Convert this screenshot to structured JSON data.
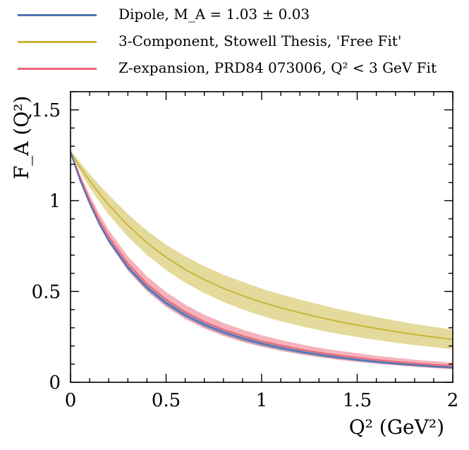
{
  "chart_data": {
    "type": "line",
    "xlabel": "Q² (GeV²)",
    "ylabel": "F_A (Q²)",
    "xlim": [
      0,
      2
    ],
    "ylim": [
      0,
      1.6
    ],
    "x_ticks": [
      0,
      0.5,
      1,
      1.5,
      2
    ],
    "x_tick_labels": [
      "0",
      "0.5",
      "1",
      "1.5",
      "2"
    ],
    "y_ticks": [
      0,
      0.5,
      1,
      1.5
    ],
    "y_tick_labels": [
      "0",
      "0.5",
      "1",
      "1.5"
    ],
    "grid": false,
    "legend_placement": "above plot",
    "x": [
      0,
      0.05,
      0.1,
      0.15,
      0.2,
      0.3,
      0.4,
      0.5,
      0.6,
      0.7,
      0.8,
      0.9,
      1.0,
      1.1,
      1.2,
      1.3,
      1.4,
      1.5,
      1.6,
      1.7,
      1.8,
      1.9,
      2.0
    ],
    "series": [
      {
        "name": "Dipole, M_A = 1.03 ± 0.03",
        "color": "#4a72b0",
        "values": [
          1.267,
          1.113,
          0.985,
          0.875,
          0.781,
          0.633,
          0.522,
          0.437,
          0.37,
          0.318,
          0.276,
          0.241,
          0.213,
          0.189,
          0.169,
          0.152,
          0.137,
          0.124,
          0.113,
          0.103,
          0.095,
          0.087,
          0.081
        ],
        "lower": [
          1.267,
          1.108,
          0.977,
          0.865,
          0.77,
          0.62,
          0.508,
          0.423,
          0.357,
          0.305,
          0.263,
          0.229,
          0.201,
          0.178,
          0.159,
          0.142,
          0.128,
          0.116,
          0.105,
          0.096,
          0.088,
          0.081,
          0.075
        ],
        "upper": [
          1.267,
          1.118,
          0.993,
          0.885,
          0.792,
          0.646,
          0.536,
          0.451,
          0.384,
          0.331,
          0.288,
          0.253,
          0.224,
          0.2,
          0.179,
          0.162,
          0.146,
          0.133,
          0.121,
          0.111,
          0.102,
          0.094,
          0.087
        ]
      },
      {
        "name": "3-Component, Stowell Thesis, 'Free Fit'",
        "color": "#c9b53a",
        "values": [
          1.267,
          1.185,
          1.11,
          1.041,
          0.977,
          0.864,
          0.768,
          0.688,
          0.621,
          0.565,
          0.517,
          0.477,
          0.441,
          0.41,
          0.383,
          0.358,
          0.335,
          0.315,
          0.296,
          0.279,
          0.263,
          0.249,
          0.236
        ],
        "lower": [
          1.255,
          1.16,
          1.073,
          0.995,
          0.923,
          0.802,
          0.701,
          0.618,
          0.548,
          0.491,
          0.442,
          0.401,
          0.366,
          0.336,
          0.31,
          0.287,
          0.267,
          0.249,
          0.233,
          0.218,
          0.205,
          0.193,
          0.182
        ],
        "upper": [
          1.279,
          1.21,
          1.147,
          1.087,
          1.031,
          0.926,
          0.835,
          0.758,
          0.694,
          0.639,
          0.592,
          0.553,
          0.516,
          0.484,
          0.456,
          0.429,
          0.403,
          0.381,
          0.359,
          0.34,
          0.321,
          0.305,
          0.29
        ]
      },
      {
        "name": "Z-expansion, PRD84 073006, Q² < 3 GeV Fit",
        "color": "#ee6677",
        "values": [
          1.267,
          1.126,
          1.003,
          0.895,
          0.802,
          0.654,
          0.542,
          0.456,
          0.388,
          0.334,
          0.291,
          0.256,
          0.227,
          0.203,
          0.182,
          0.164,
          0.149,
          0.136,
          0.124,
          0.114,
          0.105,
          0.097,
          0.09
        ],
        "lower": [
          1.262,
          1.105,
          0.975,
          0.862,
          0.766,
          0.614,
          0.501,
          0.415,
          0.348,
          0.296,
          0.255,
          0.222,
          0.195,
          0.173,
          0.154,
          0.138,
          0.124,
          0.112,
          0.102,
          0.093,
          0.085,
          0.078,
          0.072
        ],
        "upper": [
          1.272,
          1.147,
          1.031,
          0.928,
          0.838,
          0.694,
          0.583,
          0.497,
          0.428,
          0.372,
          0.327,
          0.29,
          0.259,
          0.233,
          0.21,
          0.19,
          0.174,
          0.16,
          0.146,
          0.135,
          0.125,
          0.116,
          0.108
        ]
      }
    ]
  },
  "legend": {
    "items": [
      {
        "label": "Dipole, M_A = 1.03 ± 0.03",
        "color": "#4a72b0"
      },
      {
        "label": "3-Component, Stowell Thesis, 'Free Fit'",
        "color": "#c9b53a"
      },
      {
        "label": "Z-expansion, PRD84 073006, Q² < 3 GeV Fit",
        "color": "#ee6677"
      }
    ]
  }
}
